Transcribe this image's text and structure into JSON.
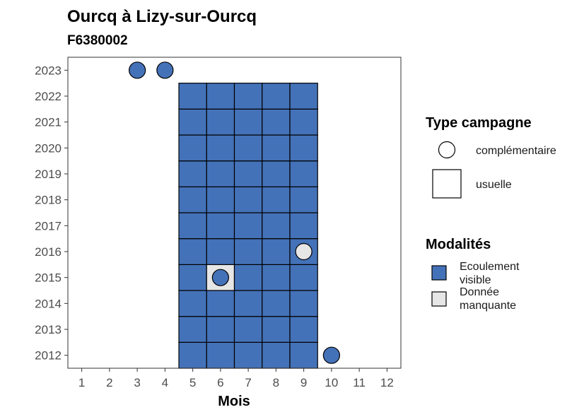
{
  "chart_data": {
    "type": "heatmap",
    "title": "Ourcq à Lizy-sur-Ourcq",
    "subtitle": "F6380002",
    "xlabel": "Mois",
    "ylabel": "",
    "x_ticks": [
      1,
      2,
      3,
      4,
      5,
      6,
      7,
      8,
      9,
      10,
      11,
      12
    ],
    "y_ticks": [
      2012,
      2013,
      2014,
      2015,
      2016,
      2017,
      2018,
      2019,
      2020,
      2021,
      2022,
      2023
    ],
    "xlim": [
      0.5,
      12.5
    ],
    "ylim": [
      2011.5,
      2023.5
    ],
    "grid": false,
    "legend_position": "right",
    "legends": [
      {
        "title": "Type campagne",
        "entries": [
          {
            "label": "complémentaire",
            "shape": "circle"
          },
          {
            "label": "usuelle",
            "shape": "square"
          }
        ]
      },
      {
        "title": "Modalités",
        "entries": [
          {
            "label_lines": [
              "Ecoulement",
              "visible"
            ],
            "modalite": "Ecoulement visible",
            "color": "#4472b8"
          },
          {
            "label_lines": [
              "Donnée",
              "manquante"
            ],
            "modalite": "Donnée manquante",
            "color": "#e6e6e6"
          }
        ]
      }
    ],
    "colors": {
      "Ecoulement visible": "#4472b8",
      "Donnée manquante": "#e6e6e6"
    },
    "usuelle": {
      "months": [
        5,
        6,
        7,
        8,
        9
      ],
      "years": [
        2012,
        2022
      ],
      "exceptions": [
        {
          "month": 6,
          "year": 2015,
          "modalite": "Donnée manquante"
        }
      ],
      "default_modalite": "Ecoulement visible"
    },
    "complementaire": [
      {
        "month": 3,
        "year": 2023,
        "modalite": "Ecoulement visible"
      },
      {
        "month": 4,
        "year": 2023,
        "modalite": "Ecoulement visible"
      },
      {
        "month": 6,
        "year": 2015,
        "modalite": "Ecoulement visible"
      },
      {
        "month": 9,
        "year": 2016,
        "modalite": "Donnée manquante"
      },
      {
        "month": 10,
        "year": 2012,
        "modalite": "Ecoulement visible"
      }
    ]
  }
}
